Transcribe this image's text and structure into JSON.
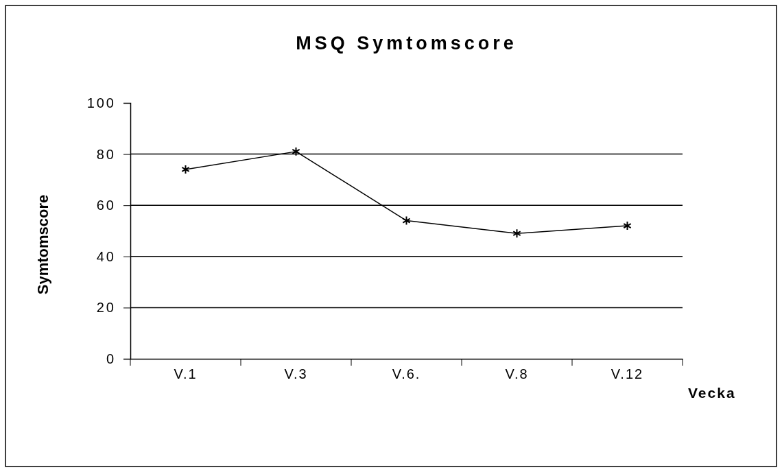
{
  "chart_data": {
    "type": "line",
    "title": "MSQ Symtomscore",
    "xlabel": "Vecka",
    "ylabel": "Symtomscore",
    "categories": [
      "V.1",
      "V.3",
      "V.6.",
      "V.8",
      "V.12"
    ],
    "series": [
      {
        "color": "#000000",
        "values": [
          74,
          81,
          54,
          49,
          52
        ]
      }
    ],
    "ylim": [
      0,
      100
    ],
    "yticks": [
      0,
      20,
      40,
      60,
      80,
      100
    ],
    "grid": "y",
    "marker": "cross",
    "line_style": "solid"
  }
}
